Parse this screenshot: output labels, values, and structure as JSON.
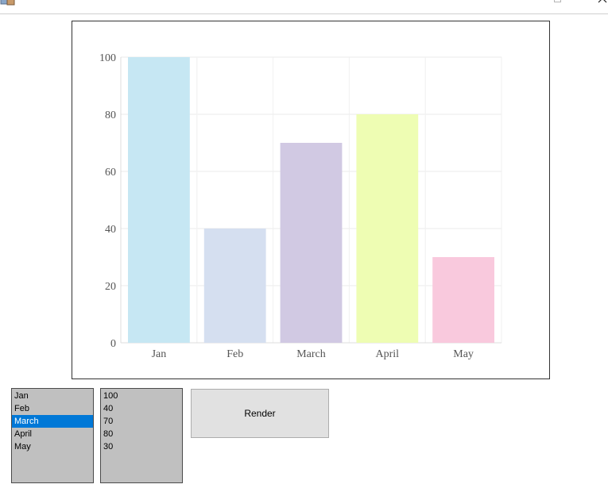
{
  "window": {
    "app_icon": "app-icon",
    "maximize_icon": "maximize-icon",
    "close_icon": "close-icon"
  },
  "chart_data": {
    "type": "bar",
    "categories": [
      "Jan",
      "Feb",
      "March",
      "April",
      "May"
    ],
    "values": [
      100,
      40,
      70,
      80,
      30
    ],
    "colors": [
      "#c6e7f3",
      "#d5dff0",
      "#d1c9e3",
      "#eefdb3",
      "#f9c9dd"
    ],
    "ylim": [
      0,
      100
    ],
    "yticks": [
      0,
      20,
      40,
      60,
      80,
      100
    ],
    "grid": true,
    "title": "",
    "xlabel": "",
    "ylabel": ""
  },
  "month_list": {
    "items": [
      "Jan",
      "Feb",
      "March",
      "April",
      "May"
    ],
    "selected_index": 2
  },
  "value_list": {
    "items": [
      "100",
      "40",
      "70",
      "80",
      "30"
    ]
  },
  "render_button": {
    "label": "Render"
  }
}
